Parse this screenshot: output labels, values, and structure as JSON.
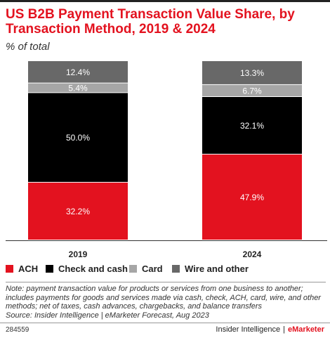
{
  "title": "US B2B Payment Transaction Value Share, by Transaction Method, 2019 & 2024",
  "subtitle": "% of total",
  "chart_data": {
    "type": "bar",
    "stacked": true,
    "categories": [
      "2019",
      "2024"
    ],
    "ylim": [
      0,
      100
    ],
    "grid": false,
    "series": [
      {
        "name": "ACH",
        "color": "#e3121f",
        "values": [
          32.2,
          47.9
        ],
        "labels": [
          "32.2%",
          "47.9%"
        ]
      },
      {
        "name": "Check and cash",
        "color": "#000000",
        "values": [
          50.0,
          32.1
        ],
        "labels": [
          "50.0%",
          "32.1%"
        ]
      },
      {
        "name": "Card",
        "color": "#a6a6a6",
        "values": [
          5.4,
          6.7
        ],
        "labels": [
          "5.4%",
          "6.7%"
        ]
      },
      {
        "name": "Wire and other",
        "color": "#686868",
        "values": [
          12.4,
          13.3
        ],
        "labels": [
          "12.4%",
          "13.3%"
        ]
      }
    ],
    "legend_position": "bottom"
  },
  "note": "Note: payment transaction value for products or services from one business to another; includes payments for goods and services made via cash, check, ACH, card, wire, and other methods; net of taxes, cash advances, chargebacks, and balance transfers",
  "source": "Source: Insider Intelligence | eMarketer Forecast, Aug 2023",
  "footer": {
    "id": "284559",
    "brand": "Insider Intelligence",
    "separator": "|",
    "brand_em": "eMarketer"
  }
}
